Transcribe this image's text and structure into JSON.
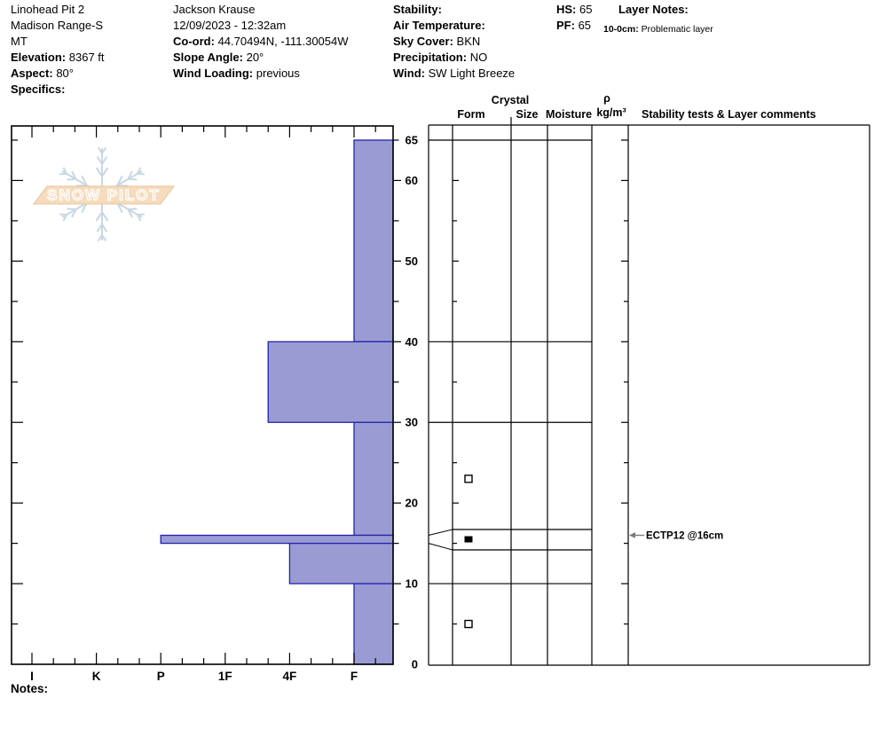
{
  "header": {
    "columns": [
      {
        "id": "location",
        "lines": [
          {
            "label": "",
            "value": "Linohead Pit 2"
          },
          {
            "label": "",
            "value": "Madison Range-S"
          },
          {
            "label": "",
            "value": "MT"
          },
          {
            "label": "Elevation:",
            "value": "8367 ft"
          },
          {
            "label": "Aspect:",
            "value": "80°"
          },
          {
            "label": "Specifics:",
            "value": ""
          }
        ]
      },
      {
        "id": "observer",
        "lines": [
          {
            "label": "",
            "value": "Jackson Krause"
          },
          {
            "label": "",
            "value": "12/09/2023 - 12:32am"
          },
          {
            "label": "Co-ord:",
            "value": "44.70494N, -111.30054W"
          },
          {
            "label": "Slope Angle:",
            "value": "20°"
          },
          {
            "label": "Wind Loading:",
            "value": "previous"
          }
        ]
      },
      {
        "id": "conditions",
        "lines": [
          {
            "label": "Stability:",
            "value": ""
          },
          {
            "label": "Air Temperature:",
            "value": ""
          },
          {
            "label": "Sky Cover:",
            "value": "BKN"
          },
          {
            "label": "Precipitation:",
            "value": "NO"
          },
          {
            "label": "Wind:",
            "value": "SW Light Breeze"
          }
        ]
      },
      {
        "id": "totals",
        "lines": [
          {
            "label": "HS:",
            "value": "65"
          },
          {
            "label": "PF:",
            "value": "65"
          }
        ]
      }
    ],
    "layer_notes": {
      "title": "Layer Notes:",
      "range_label": "10-0cm:",
      "text": "Problematic layer"
    }
  },
  "panel": {
    "crystal_header": "Crystal",
    "form_header": "Form",
    "size_header": "Size",
    "moisture_header": "Moisture",
    "density_symbol": "ρ",
    "density_unit": "kg/m³",
    "comments_header": "Stability tests & Layer comments"
  },
  "watermark": {
    "text": "SNOW PILOT"
  },
  "notes_label": "Notes:",
  "chart_data": {
    "type": "bar",
    "title": "Snow pit hardness profile",
    "orientation": "horizontal bars vs. depth",
    "y_axis": {
      "unit": "cm",
      "min": 0,
      "max": 65,
      "minor_tick": 5,
      "major_tick": 10,
      "tick_labels": [
        0,
        10,
        20,
        30,
        40,
        50,
        60,
        65
      ]
    },
    "x_axis": {
      "categories": [
        "I",
        "K",
        "P",
        "1F",
        "4F",
        "F"
      ],
      "note": "hand hardness, hardest (I) at left, softest (F) at right"
    },
    "snow_height_cm": 65,
    "layers": [
      {
        "top_cm": 65,
        "bottom_cm": 40,
        "hardness": "F"
      },
      {
        "top_cm": 40,
        "bottom_cm": 30,
        "hardness": "4F+"
      },
      {
        "top_cm": 30,
        "bottom_cm": 16,
        "hardness": "F"
      },
      {
        "top_cm": 16,
        "bottom_cm": 15,
        "hardness": "P"
      },
      {
        "top_cm": 15,
        "bottom_cm": 10,
        "hardness": "4F"
      },
      {
        "top_cm": 10,
        "bottom_cm": 0,
        "hardness": "F"
      }
    ],
    "expanded_thin_layer": {
      "top_cm": 16,
      "bottom_cm": 15
    },
    "grain_symbols": [
      {
        "depth_cm": 23,
        "symbol": "open-square"
      },
      {
        "depth_cm": 15.5,
        "symbol": "filled-square"
      },
      {
        "depth_cm": 5,
        "symbol": "open-square"
      }
    ],
    "stability_test": {
      "label": "ECTP12 @16cm",
      "depth_cm": 16
    },
    "colors": {
      "bar_fill": "#9b9bd4",
      "bar_border": "#2222ad",
      "axis": "#000000",
      "watermark_flake": "#c8d7e4",
      "watermark_band_fill": "#f5dcbe",
      "watermark_band_edge": "#e7c398",
      "watermark_letters": "#ffffff",
      "annotation_arrow": "#7a7a7a"
    }
  }
}
